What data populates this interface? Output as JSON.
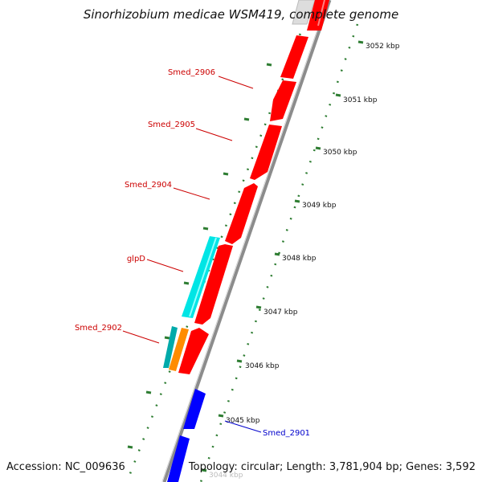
{
  "title": "Sinorhizobium medicae WSM419, complete genome",
  "accession": "Accession: NC_009636",
  "topology": "Topology: circular; Length: 3,781,904 bp; Genes: 3,592",
  "ruler_labels": [
    "3052 kbp",
    "3051 kbp",
    "3050 kbp",
    "3049 kbp",
    "3048 kbp",
    "3047 kbp",
    "3046 kbp",
    "3045 kbp",
    "3044 kbp"
  ],
  "gene_labels": {
    "smed_2906": "Smed_2906",
    "smed_2905": "Smed_2905",
    "smed_2904": "Smed_2904",
    "glpd": "glpD",
    "smed_2902": "Smed_2902",
    "smed_2901": "Smed_2901"
  },
  "colors": {
    "forward_gene": "#ff0000",
    "reverse_gene": "#0000ff",
    "cyan_feature": "#00e5e5",
    "orange_feature": "#ff8c00",
    "teal_feature": "#00aaaa",
    "grey_feature": "#dddddd",
    "backbone": "#8c8c8c",
    "ruler": "#2e7d32",
    "label_red": "#cc0000",
    "label_blue": "#0000cc"
  }
}
